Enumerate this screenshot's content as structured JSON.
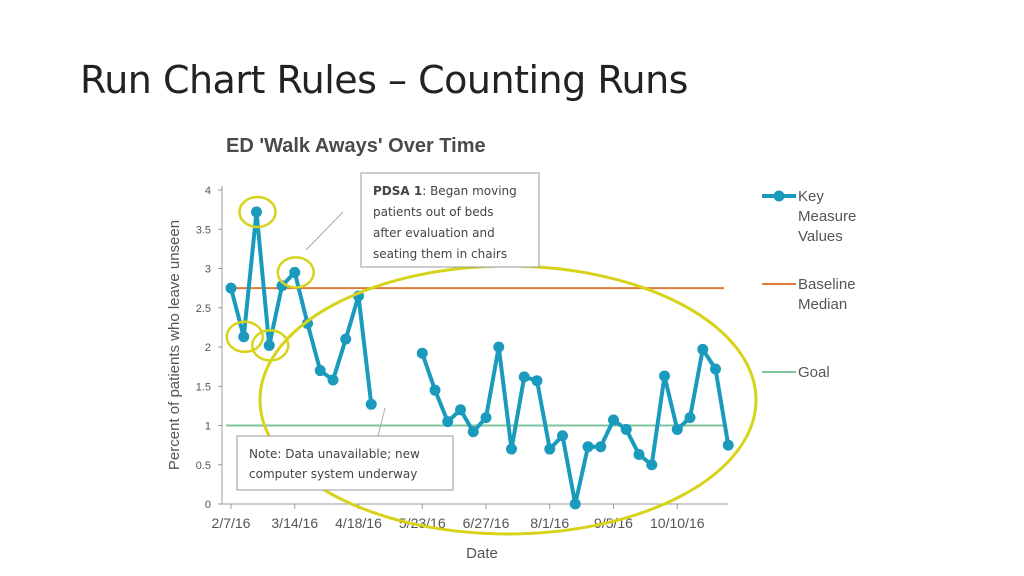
{
  "slide": {
    "title": "Run Chart Rules – Counting Runs"
  },
  "colors": {
    "series": "#1a9bbd",
    "baseline": "#e07b39",
    "goal": "#7fc6a0",
    "highlight": "#d6d31a"
  },
  "annotations": {
    "pdsa": {
      "label": "PDSA 1",
      "lines": [
        ": Began moving",
        "patients out of beds",
        "after evaluation and",
        "seating them  in chairs"
      ]
    },
    "note": {
      "lines": [
        "Note:  Data unavailable; new",
        "computer system underway"
      ]
    }
  },
  "chart_data": {
    "type": "line",
    "title": "ED 'Walk Aways' Over Time",
    "xlabel": "Date",
    "ylabel": "Percent of patients who leave unseen",
    "ylim": [
      0,
      4
    ],
    "yticks": [
      "0",
      "0.5",
      "1",
      "1.5",
      "2",
      "2.5",
      "3",
      "3.5",
      "4"
    ],
    "xticks": [
      "2/7/16",
      "3/14/16",
      "4/18/16",
      "5/23/16",
      "6/27/16",
      "8/1/16",
      "9/5/16",
      "10/10/16"
    ],
    "grid": false,
    "legend": [
      {
        "name": "Key Measure Values",
        "lines": [
          "Key",
          "Measure",
          "Values"
        ],
        "kind": "series"
      },
      {
        "name": "Baseline Median",
        "lines": [
          "Baseline",
          "Median"
        ],
        "kind": "baseline"
      },
      {
        "name": "Goal",
        "lines": [
          "Goal"
        ],
        "kind": "goal"
      }
    ],
    "legend_position": "right",
    "baseline_median": 2.75,
    "goal": 1.0,
    "series": [
      {
        "name": "Key Measure Values",
        "segments": [
          [
            2.75,
            2.13,
            3.72,
            2.02,
            2.78,
            2.95,
            2.3,
            1.7,
            1.58,
            2.1,
            2.65,
            1.27
          ],
          [
            1.92,
            1.45,
            1.05,
            1.2,
            0.92,
            1.1,
            2.0,
            0.7,
            1.62,
            1.57,
            0.7,
            0.87,
            0.0,
            0.73,
            0.73,
            1.07,
            0.95,
            0.63,
            0.5,
            1.63,
            0.95,
            1.1,
            1.97,
            1.72,
            0.75
          ]
        ]
      }
    ],
    "highlighted_points": [
      1,
      2,
      3,
      5
    ],
    "highlighted_region": "runs after first week"
  }
}
